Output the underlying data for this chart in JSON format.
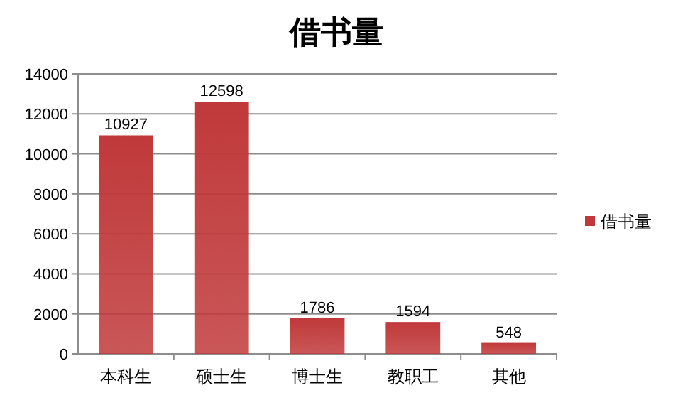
{
  "chart_data": {
    "type": "bar",
    "title": "借书量",
    "categories": [
      "本科生",
      "硕士生",
      "博士生",
      "教职工",
      "其他"
    ],
    "series": [
      {
        "name": "借书量",
        "color": "#c0393a",
        "values": [
          10927,
          12598,
          1786,
          1594,
          548
        ]
      }
    ],
    "ylim": [
      0,
      14000
    ],
    "yticks": [
      0,
      2000,
      4000,
      6000,
      8000,
      10000,
      12000,
      14000
    ],
    "grid": "y",
    "legend": "right",
    "data_labels": true
  }
}
